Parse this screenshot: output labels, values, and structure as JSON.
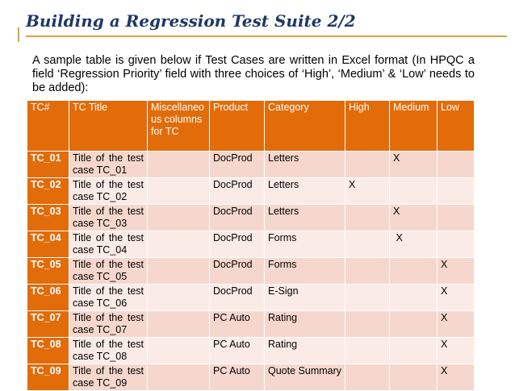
{
  "title": "Building a Regression Test Suite 2/2",
  "intro": "A sample table is given below if Test Cases are written in Excel format (In HPQC a field ‘Regression Priority’ field with three choices of ‘High’, ‘Medium’ & ‘Low’ needs to be added):",
  "table": {
    "headers": [
      "TC#",
      "TC Title",
      "Miscellaneous columns for TC",
      "Product",
      "Category",
      "High",
      "Medium",
      "Low"
    ],
    "rows": [
      {
        "id": "TC_01",
        "title1": "Title of the test",
        "title2": "case TC_01",
        "misc": "",
        "product": "DocProd",
        "category": "Letters",
        "high": "",
        "medium": "X",
        "low": ""
      },
      {
        "id": "TC_02",
        "title1": "Title of the test",
        "title2": "case TC_02",
        "misc": "",
        "product": "DocProd",
        "category": "Letters",
        "high": "X",
        "medium": "",
        "low": ""
      },
      {
        "id": "TC_03",
        "title1": "Title of the test",
        "title2": "case TC_03",
        "misc": "",
        "product": "DocProd",
        "category": "Letters",
        "high": "",
        "medium": "X",
        "low": ""
      },
      {
        "id": "TC_04",
        "title1": "Title of the test",
        "title2": "case TC_04",
        "misc": "",
        "product": "DocProd",
        "category": "Forms",
        "high": "",
        "medium": " X",
        "low": ""
      },
      {
        "id": "TC_05",
        "title1": "Title of the test",
        "title2": "case TC_05",
        "misc": "",
        "product": "DocProd",
        "category": "Forms",
        "high": "",
        "medium": "",
        "low": "X"
      },
      {
        "id": "TC_06",
        "title1": "Title of the test",
        "title2": "case TC_06",
        "misc": "",
        "product": "DocProd",
        "category": "E-Sign",
        "high": "",
        "medium": "",
        "low": "X"
      },
      {
        "id": "TC_07",
        "title1": "Title of the test",
        "title2": "case TC_07",
        "misc": "",
        "product": "PC Auto",
        "category": "Rating",
        "high": "",
        "medium": "",
        "low": "X"
      },
      {
        "id": "TC_08",
        "title1": "Title of the test",
        "title2": "case TC_08",
        "misc": "",
        "product": "PC Auto",
        "category": "Rating",
        "high": "",
        "medium": "",
        "low": "X"
      },
      {
        "id": "TC_09",
        "title1": "Title of the test",
        "title2": "case TC_09",
        "misc": "",
        "product": "PC Auto",
        "category": "Quote Summary",
        "high": "",
        "medium": "",
        "low": "X"
      }
    ]
  },
  "colors": {
    "title": "#1f3864",
    "accent_rule": "#d9a441",
    "header_fill": "#e36c0a",
    "row_odd": "#f6d7cd",
    "row_even": "#fbebe6"
  }
}
